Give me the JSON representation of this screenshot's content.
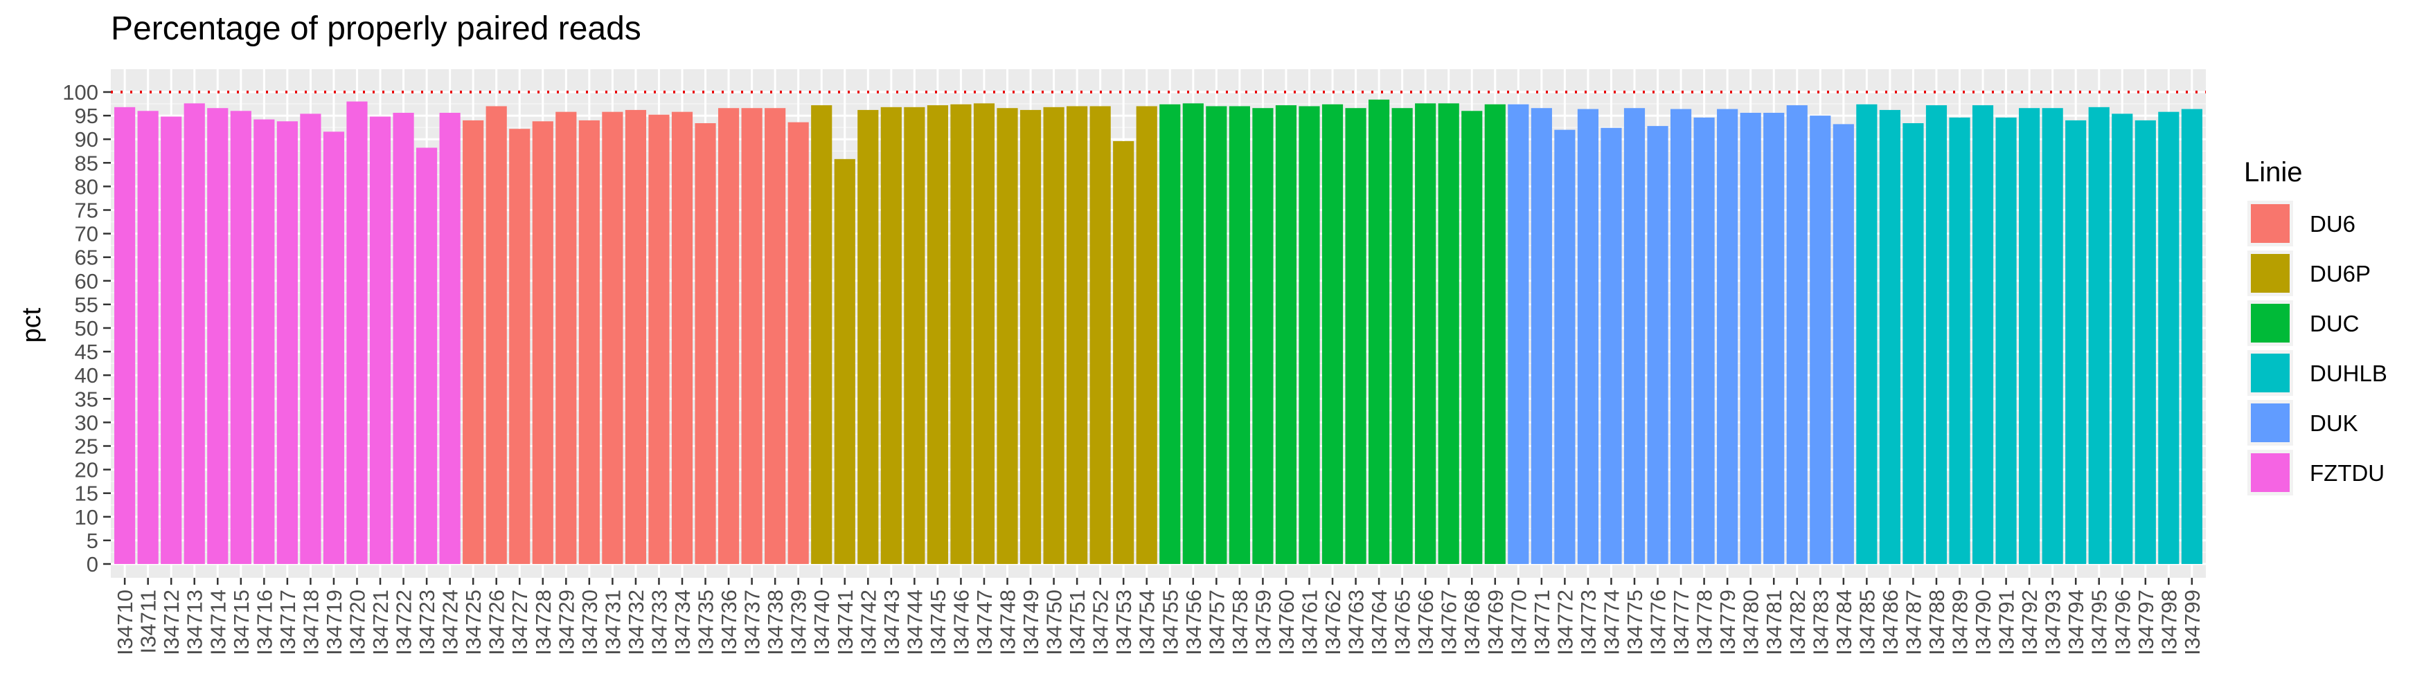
{
  "chart_data": {
    "type": "bar",
    "title": "Percentage of properly paired reads",
    "xlabel": "",
    "ylabel": "pct",
    "ylim": [
      0,
      100
    ],
    "yticks": [
      0,
      5,
      10,
      15,
      20,
      25,
      30,
      35,
      40,
      45,
      50,
      55,
      60,
      65,
      70,
      75,
      80,
      85,
      90,
      95,
      100
    ],
    "reference_line": 100,
    "grid": true,
    "legend_title": "Linie",
    "legend_position": "right",
    "legend": [
      {
        "label": "DU6",
        "color": "#F8766D"
      },
      {
        "label": "DU6P",
        "color": "#B79F00"
      },
      {
        "label": "DUC",
        "color": "#00BA38"
      },
      {
        "label": "DUHLB",
        "color": "#00BFC4"
      },
      {
        "label": "DUK",
        "color": "#619CFF"
      },
      {
        "label": "FZTDU",
        "color": "#F564E3"
      }
    ],
    "categories": [
      "I34710",
      "I34711",
      "I34712",
      "I34713",
      "I34714",
      "I34715",
      "I34716",
      "I34717",
      "I34718",
      "I34719",
      "I34720",
      "I34721",
      "I34722",
      "I34723",
      "I34724",
      "I34725",
      "I34726",
      "I34727",
      "I34728",
      "I34729",
      "I34730",
      "I34731",
      "I34732",
      "I34733",
      "I34734",
      "I34735",
      "I34736",
      "I34737",
      "I34738",
      "I34739",
      "I34740",
      "I34741",
      "I34742",
      "I34743",
      "I34744",
      "I34745",
      "I34746",
      "I34747",
      "I34748",
      "I34749",
      "I34750",
      "I34751",
      "I34752",
      "I34753",
      "I34754",
      "I34755",
      "I34756",
      "I34757",
      "I34758",
      "I34759",
      "I34760",
      "I34761",
      "I34762",
      "I34763",
      "I34764",
      "I34765",
      "I34766",
      "I34767",
      "I34768",
      "I34769",
      "I34770",
      "I34771",
      "I34772",
      "I34773",
      "I34774",
      "I34775",
      "I34776",
      "I34777",
      "I34778",
      "I34779",
      "I34780",
      "I34781",
      "I34782",
      "I34783",
      "I34784",
      "I34785",
      "I34786",
      "I34787",
      "I34788",
      "I34789",
      "I34790",
      "I34791",
      "I34792",
      "I34793",
      "I34794",
      "I34795",
      "I34796",
      "I34797",
      "I34798",
      "I34799"
    ],
    "values": [
      96.8,
      96.0,
      94.8,
      97.6,
      96.6,
      96.0,
      94.2,
      93.8,
      95.4,
      91.6,
      98.0,
      94.8,
      95.6,
      88.2,
      95.6,
      94.0,
      97.0,
      92.2,
      93.8,
      95.8,
      94.0,
      95.8,
      96.2,
      95.2,
      95.8,
      93.4,
      96.6,
      96.6,
      96.6,
      93.6,
      97.2,
      85.8,
      96.2,
      96.8,
      96.8,
      97.2,
      97.4,
      97.6,
      96.6,
      96.2,
      96.8,
      97.0,
      97.0,
      89.6,
      97.0,
      97.4,
      97.6,
      97.0,
      97.0,
      96.6,
      97.2,
      97.0,
      97.4,
      96.6,
      98.4,
      96.6,
      97.6,
      97.6,
      96.0,
      97.4,
      97.4,
      96.6,
      92.0,
      96.4,
      92.4,
      96.6,
      92.8,
      96.4,
      94.6,
      96.4,
      95.6,
      95.6,
      97.2,
      95.0,
      93.2,
      97.4,
      96.2,
      93.4,
      97.2,
      94.6,
      97.2,
      94.6,
      96.6,
      96.6,
      94.0,
      96.8,
      95.4,
      94.0,
      95.8,
      96.4
    ],
    "groups": [
      "FZTDU",
      "FZTDU",
      "FZTDU",
      "FZTDU",
      "FZTDU",
      "FZTDU",
      "FZTDU",
      "FZTDU",
      "FZTDU",
      "FZTDU",
      "FZTDU",
      "FZTDU",
      "FZTDU",
      "FZTDU",
      "FZTDU",
      "DU6",
      "DU6",
      "DU6",
      "DU6",
      "DU6",
      "DU6",
      "DU6",
      "DU6",
      "DU6",
      "DU6",
      "DU6",
      "DU6",
      "DU6",
      "DU6",
      "DU6",
      "DU6P",
      "DU6P",
      "DU6P",
      "DU6P",
      "DU6P",
      "DU6P",
      "DU6P",
      "DU6P",
      "DU6P",
      "DU6P",
      "DU6P",
      "DU6P",
      "DU6P",
      "DU6P",
      "DU6P",
      "DUC",
      "DUC",
      "DUC",
      "DUC",
      "DUC",
      "DUC",
      "DUC",
      "DUC",
      "DUC",
      "DUC",
      "DUC",
      "DUC",
      "DUC",
      "DUC",
      "DUC",
      "DUK",
      "DUK",
      "DUK",
      "DUK",
      "DUK",
      "DUK",
      "DUK",
      "DUK",
      "DUK",
      "DUK",
      "DUK",
      "DUK",
      "DUK",
      "DUK",
      "DUK",
      "DUHLB",
      "DUHLB",
      "DUHLB",
      "DUHLB",
      "DUHLB",
      "DUHLB",
      "DUHLB",
      "DUHLB",
      "DUHLB",
      "DUHLB",
      "DUHLB",
      "DUHLB",
      "DUHLB",
      "DUHLB",
      "DUHLB"
    ]
  }
}
